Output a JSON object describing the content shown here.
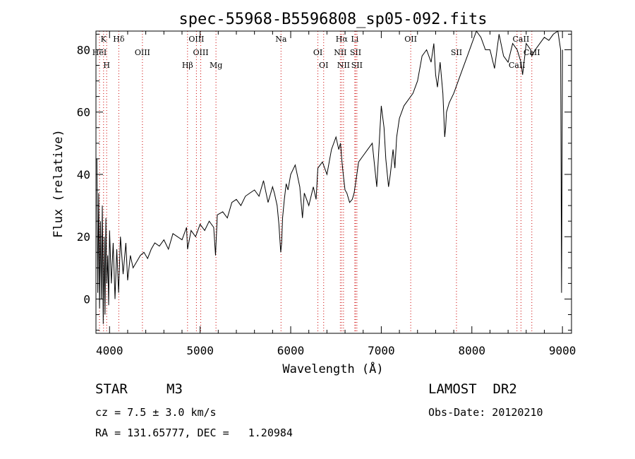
{
  "chart_data": {
    "type": "line",
    "title": "spec-55968-B5596808_sp05-092.fits",
    "xlabel": "Wavelength (Å)",
    "ylabel": "Flux (relative)",
    "xlim": [
      3850,
      9100
    ],
    "ylim": [
      -11,
      86
    ],
    "x_ticks": [
      4000,
      5000,
      6000,
      7000,
      8000,
      9000
    ],
    "y_ticks": [
      0,
      20,
      40,
      60,
      80
    ],
    "grid": false,
    "series": [
      {
        "name": "flux",
        "color": "#000000",
        "x": [
          3860,
          3870,
          3880,
          3890,
          3900,
          3910,
          3920,
          3930,
          3940,
          3950,
          3960,
          3970,
          3980,
          3990,
          4000,
          4020,
          4040,
          4060,
          4080,
          4100,
          4120,
          4150,
          4180,
          4200,
          4230,
          4260,
          4300,
          4340,
          4380,
          4420,
          4460,
          4500,
          4550,
          4600,
          4650,
          4700,
          4750,
          4800,
          4850,
          4861,
          4900,
          4950,
          5000,
          5050,
          5100,
          5150,
          5170,
          5190,
          5250,
          5300,
          5350,
          5400,
          5450,
          5500,
          5550,
          5600,
          5650,
          5700,
          5750,
          5780,
          5800,
          5820,
          5850,
          5870,
          5890,
          5900,
          5910,
          5930,
          5950,
          5970,
          6000,
          6050,
          6100,
          6130,
          6150,
          6200,
          6250,
          6280,
          6300,
          6350,
          6400,
          6450,
          6500,
          6530,
          6550,
          6563,
          6580,
          6600,
          6620,
          6650,
          6680,
          6700,
          6720,
          6750,
          6800,
          6850,
          6900,
          6950,
          7000,
          7030,
          7050,
          7080,
          7100,
          7130,
          7150,
          7170,
          7200,
          7250,
          7300,
          7350,
          7400,
          7450,
          7500,
          7550,
          7580,
          7600,
          7620,
          7650,
          7680,
          7700,
          7710,
          7720,
          7750,
          7800,
          7850,
          7900,
          7950,
          8000,
          8050,
          8100,
          8150,
          8200,
          8250,
          8300,
          8350,
          8400,
          8450,
          8500,
          8542,
          8560,
          8600,
          8650,
          8662,
          8700,
          8750,
          8800,
          8850,
          8900,
          8950,
          8980,
          8990,
          9000
        ],
        "y": [
          45,
          2,
          34,
          -3,
          25,
          0,
          30,
          -8,
          20,
          -5,
          26,
          5,
          14,
          -2,
          22,
          5,
          18,
          0,
          16,
          2,
          20,
          8,
          18,
          6,
          14,
          10,
          12,
          14,
          15,
          13,
          16,
          18,
          17,
          19,
          16,
          21,
          20,
          19,
          23,
          16,
          22,
          20,
          24,
          22,
          25,
          23,
          14,
          27,
          28,
          26,
          31,
          32,
          30,
          33,
          34,
          35,
          33,
          38,
          31,
          34,
          36,
          34,
          30,
          24,
          15,
          18,
          26,
          32,
          37,
          35,
          40,
          43,
          36,
          26,
          34,
          30,
          36,
          32,
          42,
          44,
          40,
          48,
          52,
          48,
          50,
          45,
          40,
          35,
          34,
          31,
          32,
          34,
          38,
          44,
          46,
          48,
          50,
          36,
          62,
          55,
          45,
          36,
          40,
          48,
          42,
          52,
          58,
          62,
          64,
          66,
          70,
          78,
          80,
          76,
          82,
          72,
          68,
          76,
          66,
          52,
          55,
          60,
          63,
          66,
          70,
          74,
          78,
          82,
          86,
          84,
          80,
          80,
          74,
          85,
          78,
          76,
          82,
          80,
          76,
          72,
          82,
          80,
          78,
          80,
          82,
          84,
          83,
          85,
          86,
          80,
          2,
          80
        ]
      }
    ],
    "line_markers": [
      {
        "label": "K",
        "x": 3934
      },
      {
        "label": "HeI",
        "x": 3889
      },
      {
        "label": "H",
        "x": 3968
      },
      {
        "label": "Hδ",
        "x": 4102
      },
      {
        "label": "OIII",
        "x": 4363
      },
      {
        "label": "Hβ",
        "x": 4861
      },
      {
        "label": "OIII",
        "x": 4959
      },
      {
        "label": "OIII",
        "x": 5007
      },
      {
        "label": "Mg",
        "x": 5175
      },
      {
        "label": "Na",
        "x": 5893
      },
      {
        "label": "OI",
        "x": 6300
      },
      {
        "label": "OI",
        "x": 6364
      },
      {
        "label": "Hα",
        "x": 6563
      },
      {
        "label": "NII",
        "x": 6548
      },
      {
        "label": "NII",
        "x": 6583
      },
      {
        "label": "Li",
        "x": 6708
      },
      {
        "label": "SII",
        "x": 6716
      },
      {
        "label": "SII",
        "x": 6731
      },
      {
        "label": "OII",
        "x": 7325
      },
      {
        "label": "SII",
        "x": 7830
      },
      {
        "label": "CaII",
        "x": 8498
      },
      {
        "label": "CaII",
        "x": 8542
      },
      {
        "label": "CaII",
        "x": 8662
      }
    ]
  },
  "info": {
    "object_class": "STAR",
    "subclass": "M3",
    "survey": "LAMOST  DR2",
    "cz": "cz = 7.5 ± 3.0 km/s",
    "obs_date": "Obs-Date: 20120210",
    "coords": "RA = 131.65777, DEC =   1.20984"
  },
  "colors": {
    "axis": "#000000",
    "spectrum": "#000000",
    "marker": "#cc0000"
  }
}
